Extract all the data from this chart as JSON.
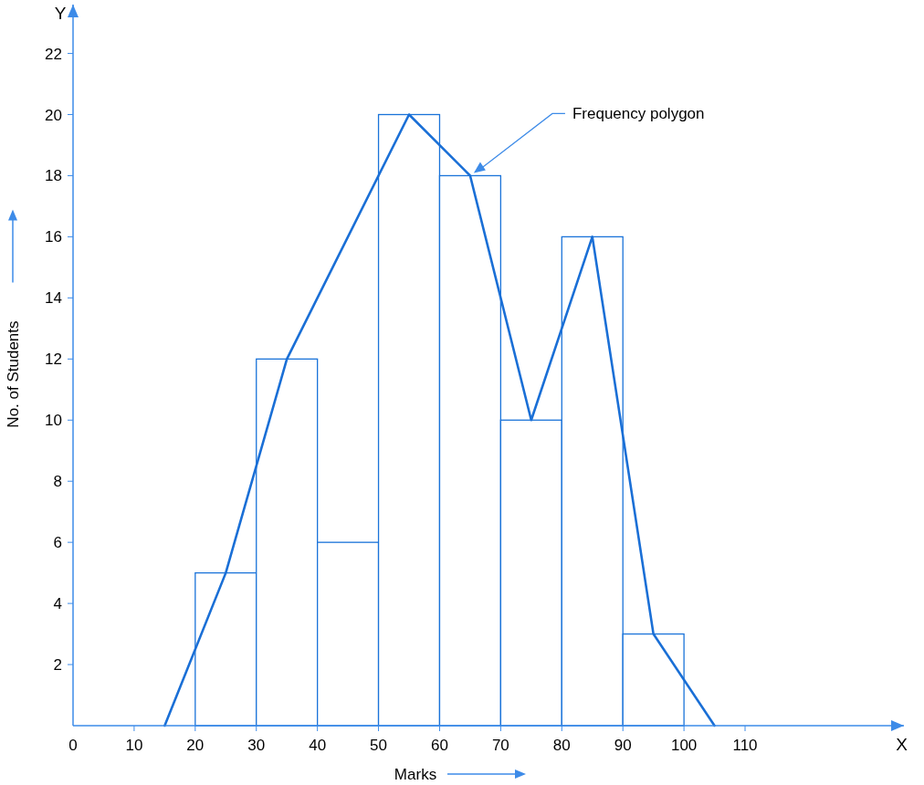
{
  "chart_data": {
    "type": "histogram",
    "xlabel": "Marks",
    "ylabel": "No. of Students",
    "bins": [
      20,
      30,
      40,
      50,
      60,
      70,
      80,
      90,
      100
    ],
    "values": [
      5,
      12,
      6,
      20,
      18,
      10,
      16,
      3
    ],
    "color": "#1a73d9",
    "series": [
      {
        "type": "line",
        "x": [
          15,
          25,
          35,
          55,
          65,
          75,
          85,
          95,
          105
        ],
        "values": [
          0,
          5,
          12,
          20,
          18,
          10,
          16,
          3,
          0
        ],
        "color": "#1a6fd6"
      }
    ],
    "xlim": [
      0,
      136
    ],
    "ylim": [
      0,
      23.6
    ],
    "xticks": [
      {
        "value": 0,
        "label": "0"
      },
      10,
      20,
      30,
      40,
      50,
      60,
      70,
      80,
      90,
      100,
      110
    ],
    "yticks": [
      2,
      4,
      6,
      8,
      10,
      12,
      14,
      16,
      18,
      20,
      22
    ],
    "grid": false,
    "annotations": [
      "Frequency polygon",
      "X",
      "Y"
    ]
  }
}
